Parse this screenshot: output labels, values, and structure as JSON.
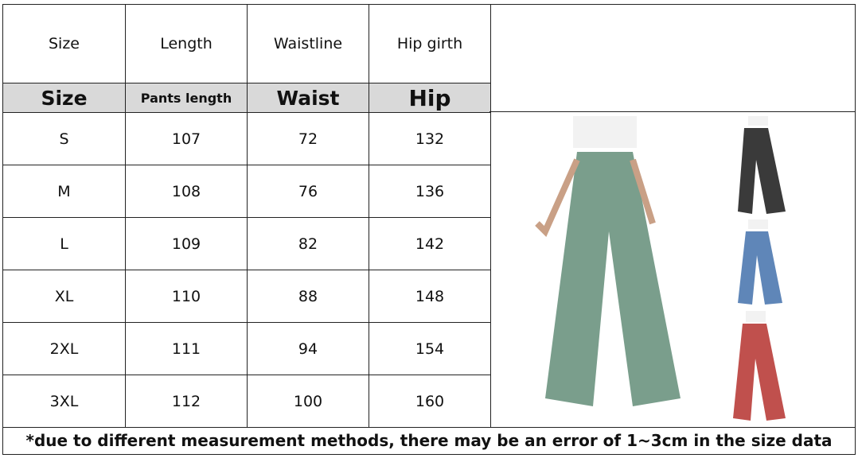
{
  "header": [
    "Size",
    "Length",
    "Waistline",
    "Hip girth"
  ],
  "subheader": [
    "Size",
    "Pants length",
    "Waist",
    "Hip"
  ],
  "rows": [
    [
      "S",
      "107",
      "72",
      "132"
    ],
    [
      "M",
      "108",
      "76",
      "136"
    ],
    [
      "L",
      "109",
      "82",
      "142"
    ],
    [
      "XL",
      "110",
      "88",
      "148"
    ],
    [
      "2XL",
      "111",
      "94",
      "154"
    ],
    [
      "3XL",
      "112",
      "100",
      "160"
    ]
  ],
  "footnote": "*due to different measurement methods, there may be an error of 1~3cm in the size data",
  "product_colors": {
    "main": "#7a9e8c",
    "black": "#3a3a3a",
    "blue": "#5f86b8",
    "red": "#c0504d"
  }
}
